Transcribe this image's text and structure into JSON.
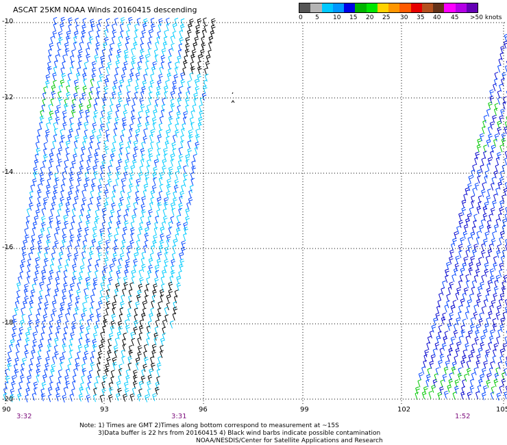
{
  "title": "ASCAT 25KM NOAA Winds 20160415 descending",
  "legend": {
    "colors": [
      "#555555",
      "#b4b4b4",
      "#00c8ff",
      "#0096ff",
      "#0000e6",
      "#00b400",
      "#00e600",
      "#ffd200",
      "#ff9600",
      "#ff5a00",
      "#e60000",
      "#b4501e",
      "#643219",
      "#ff00ff",
      "#b400e6",
      "#6400b4"
    ],
    "labels": [
      "0",
      "5",
      "10",
      "15",
      "20",
      "25",
      "30",
      "35",
      "40",
      "45",
      ">50 knots"
    ]
  },
  "lat_labels": [
    "-10",
    "-12",
    "-14",
    "-16",
    "-18",
    "-20"
  ],
  "lon_labels": [
    "90",
    "93",
    "96",
    "99",
    "102",
    "105"
  ],
  "times": [
    "3:32",
    "3:31",
    "1:52"
  ],
  "notes": [
    "Note: 1) Times are GMT 2)Times along bottom correspond to measurement at ~15S",
    "3)Data buffer is 22 hrs from 20160415 4) Black wind barbs indicate possible contamination",
    "NOAA/NESDIS/Center for Satellite Applications and Research"
  ],
  "swaths": [
    {
      "name": "west-swath",
      "predominant_colors": [
        "#0044ff",
        "#00ccff",
        "#00c800",
        "#000000"
      ]
    },
    {
      "name": "east-swath",
      "predominant_colors": [
        "#0000cc",
        "#0044ff",
        "#00c800"
      ]
    }
  ]
}
